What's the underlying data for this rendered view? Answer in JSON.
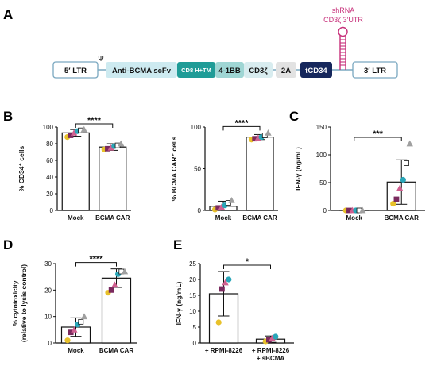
{
  "panel_labels": [
    "A",
    "B",
    "C",
    "D",
    "E"
  ],
  "construct": {
    "ltr5": "5′ LTR",
    "psi": "Ψ",
    "scfv": "Anti-BCMA scFv",
    "cd8": "CD8 H+TM",
    "bb": "4-1BB",
    "cd3z": "CD3ζ",
    "p2a": "2A",
    "tcd34": "tCD34",
    "ltr3": "3′ LTR",
    "shrna_line1": "shRNA",
    "shrna_line2": "CD3ζ 3′UTR",
    "colors": {
      "scfv": "#cdeaf0",
      "cd8": "#1f9c97",
      "bb": "#9fd6d4",
      "cd3z": "#d8ecef",
      "p2a": "#e2e2e2",
      "tcd34": "#16275c",
      "shrna": "#c7307a"
    }
  },
  "chart_data": [
    {
      "type": "bar",
      "panel": "B",
      "categories": [
        "Mock",
        "BCMA CAR"
      ],
      "values": [
        93,
        76
      ],
      "errors": [
        4,
        4
      ],
      "points": [
        [
          88,
          90,
          93,
          95,
          96,
          97
        ],
        [
          73,
          74,
          75,
          77,
          78,
          80
        ]
      ],
      "ylabel": "% CD34⁺ cells",
      "ylim": [
        0,
        100
      ],
      "yticks": [
        0,
        20,
        40,
        60,
        80,
        100
      ],
      "significance": "****"
    },
    {
      "type": "bar",
      "panel": "B",
      "categories": [
        "Mock",
        "BCMA CAR"
      ],
      "values": [
        5,
        88
      ],
      "errors": [
        6,
        3
      ],
      "points": [
        [
          1,
          3,
          4,
          6,
          9,
          12
        ],
        [
          85,
          86,
          87,
          88,
          90,
          93
        ]
      ],
      "ylabel": "% BCMA CAR⁺ cells",
      "ylim": [
        0,
        100
      ],
      "yticks": [
        0,
        50,
        100
      ],
      "significance": "****"
    },
    {
      "type": "bar",
      "panel": "C",
      "categories": [
        "Mock",
        "BCMA CAR"
      ],
      "values": [
        0.5,
        51
      ],
      "errors": [
        0.5,
        40
      ],
      "points": [
        [
          0,
          0,
          0,
          0,
          0,
          0
        ],
        [
          12,
          20,
          40,
          55,
          85,
          120
        ]
      ],
      "ylabel": "IFN-γ (ng/mL)",
      "ylim": [
        0,
        150
      ],
      "yticks": [
        0,
        50,
        100,
        150
      ],
      "significance": "***"
    },
    {
      "type": "bar",
      "panel": "D",
      "categories": [
        "Mock",
        "BCMA CAR"
      ],
      "values": [
        6,
        24.5
      ],
      "errors": [
        3.5,
        3.5
      ],
      "points": [
        [
          1,
          4,
          5,
          7,
          8,
          10
        ],
        [
          19,
          20,
          22,
          26,
          27,
          27
        ]
      ],
      "ylabel": "% cytotoxicity (relative to lysis control)",
      "ylabel_lines": [
        "% cytotoxicity",
        "(relative to lysis control)"
      ],
      "ylim": [
        0,
        30
      ],
      "yticks": [
        0,
        10,
        20,
        30
      ],
      "significance": "****"
    },
    {
      "type": "bar",
      "panel": "E",
      "categories": [
        "+ RPMI-8226",
        "+ RPMI-8226 + sBCMA"
      ],
      "category_lines": [
        [
          "+ RPMI-8226"
        ],
        [
          "+ RPMI-8226",
          "+ sBCMA"
        ]
      ],
      "values": [
        15.5,
        1.2
      ],
      "errors": [
        7,
        1
      ],
      "points": [
        [
          6.5,
          17,
          19,
          20
        ],
        [
          0.5,
          1,
          1.5,
          2
        ]
      ],
      "ylabel": "IFN-γ (ng/mL)",
      "ylim": [
        0,
        25
      ],
      "yticks": [
        0,
        5,
        10,
        15,
        20,
        25
      ],
      "significance": "*"
    }
  ],
  "point_colors": [
    "#e8c12a",
    "#7b2a5e",
    "#d06090",
    "#2aa6b8",
    "#ffffff",
    "#a0a0a0"
  ]
}
